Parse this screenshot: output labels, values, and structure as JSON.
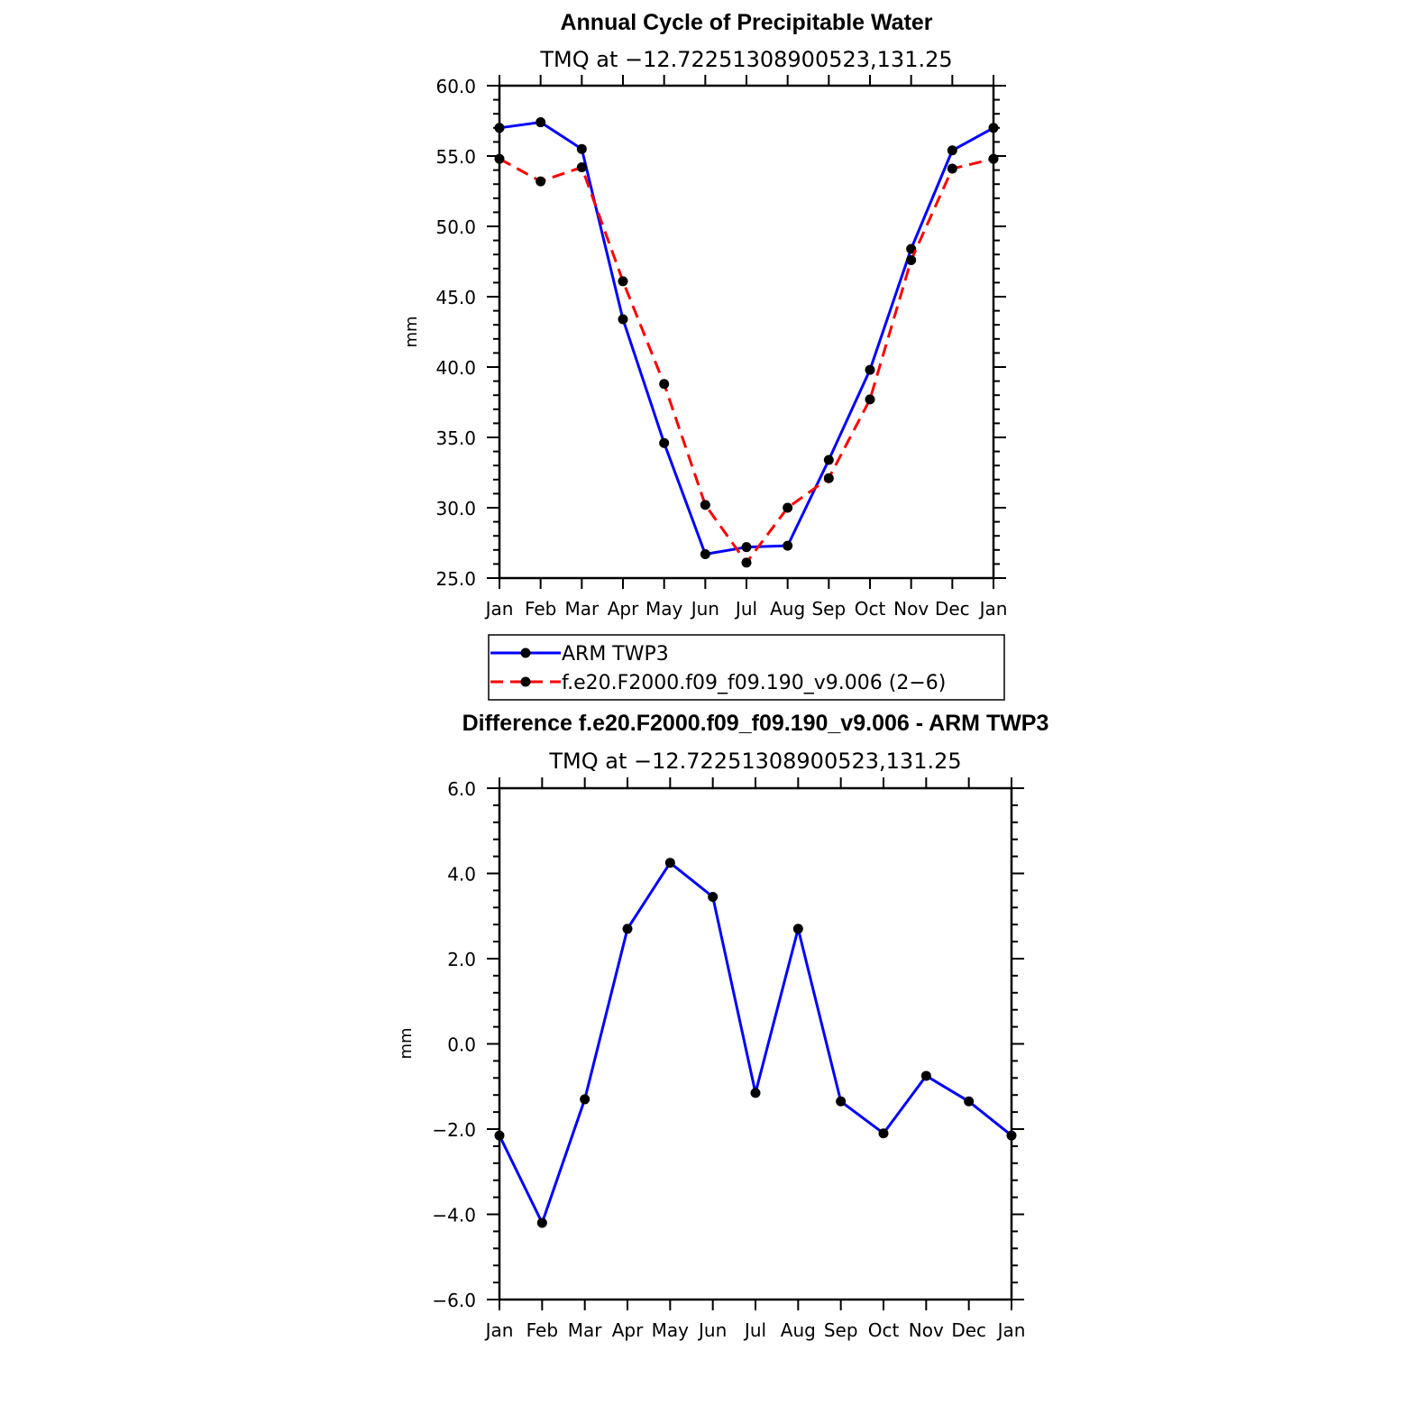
{
  "chart_data": [
    {
      "type": "line",
      "title": "Annual Cycle of Precipitable Water",
      "subtitle": "TMQ at −12.72251308900523,131.25",
      "ylabel": "mm",
      "xlabel": "",
      "categories": [
        "Jan",
        "Feb",
        "Mar",
        "Apr",
        "May",
        "Jun",
        "Jul",
        "Aug",
        "Sep",
        "Oct",
        "Nov",
        "Dec",
        "Jan"
      ],
      "ylim": [
        25.0,
        60.0
      ],
      "yticks": [
        25.0,
        30.0,
        35.0,
        40.0,
        45.0,
        50.0,
        55.0,
        60.0
      ],
      "ytick_labels": [
        "25.0",
        "30.0",
        "35.0",
        "40.0",
        "45.0",
        "50.0",
        "55.0",
        "60.0"
      ],
      "legend_position": "below",
      "series": [
        {
          "name": "ARM TWP3",
          "color": "#0000ff",
          "dash": "solid",
          "values": [
            57.0,
            57.4,
            55.5,
            43.4,
            34.6,
            26.7,
            27.2,
            27.3,
            33.4,
            39.8,
            48.4,
            55.4,
            57.0
          ]
        },
        {
          "name": "f.e20.F2000.f09_f09.190_v9.006 (2−6)",
          "color": "#ff0000",
          "dash": "dashed",
          "values": [
            54.8,
            53.2,
            54.2,
            46.1,
            38.8,
            30.2,
            26.1,
            30.0,
            32.1,
            37.7,
            47.6,
            54.1,
            54.8
          ]
        }
      ]
    },
    {
      "type": "line",
      "title": "Difference f.e20.F2000.f09_f09.190_v9.006 - ARM TWP3",
      "subtitle": "TMQ at −12.72251308900523,131.25",
      "ylabel": "mm",
      "xlabel": "",
      "categories": [
        "Jan",
        "Feb",
        "Mar",
        "Apr",
        "May",
        "Jun",
        "Jul",
        "Aug",
        "Sep",
        "Oct",
        "Nov",
        "Dec",
        "Jan"
      ],
      "ylim": [
        -6.0,
        6.0
      ],
      "yticks": [
        -6.0,
        -4.0,
        -2.0,
        0.0,
        2.0,
        4.0,
        6.0
      ],
      "ytick_labels": [
        "−6.0",
        "−4.0",
        "−2.0",
        "0.0",
        "2.0",
        "4.0",
        "6.0"
      ],
      "series": [
        {
          "name": "Difference",
          "color": "#0000ff",
          "dash": "solid",
          "values": [
            -2.15,
            -4.2,
            -1.3,
            2.7,
            4.25,
            3.45,
            -1.15,
            2.7,
            -1.35,
            -2.1,
            -0.75,
            -1.35,
            -2.15
          ]
        }
      ]
    }
  ]
}
